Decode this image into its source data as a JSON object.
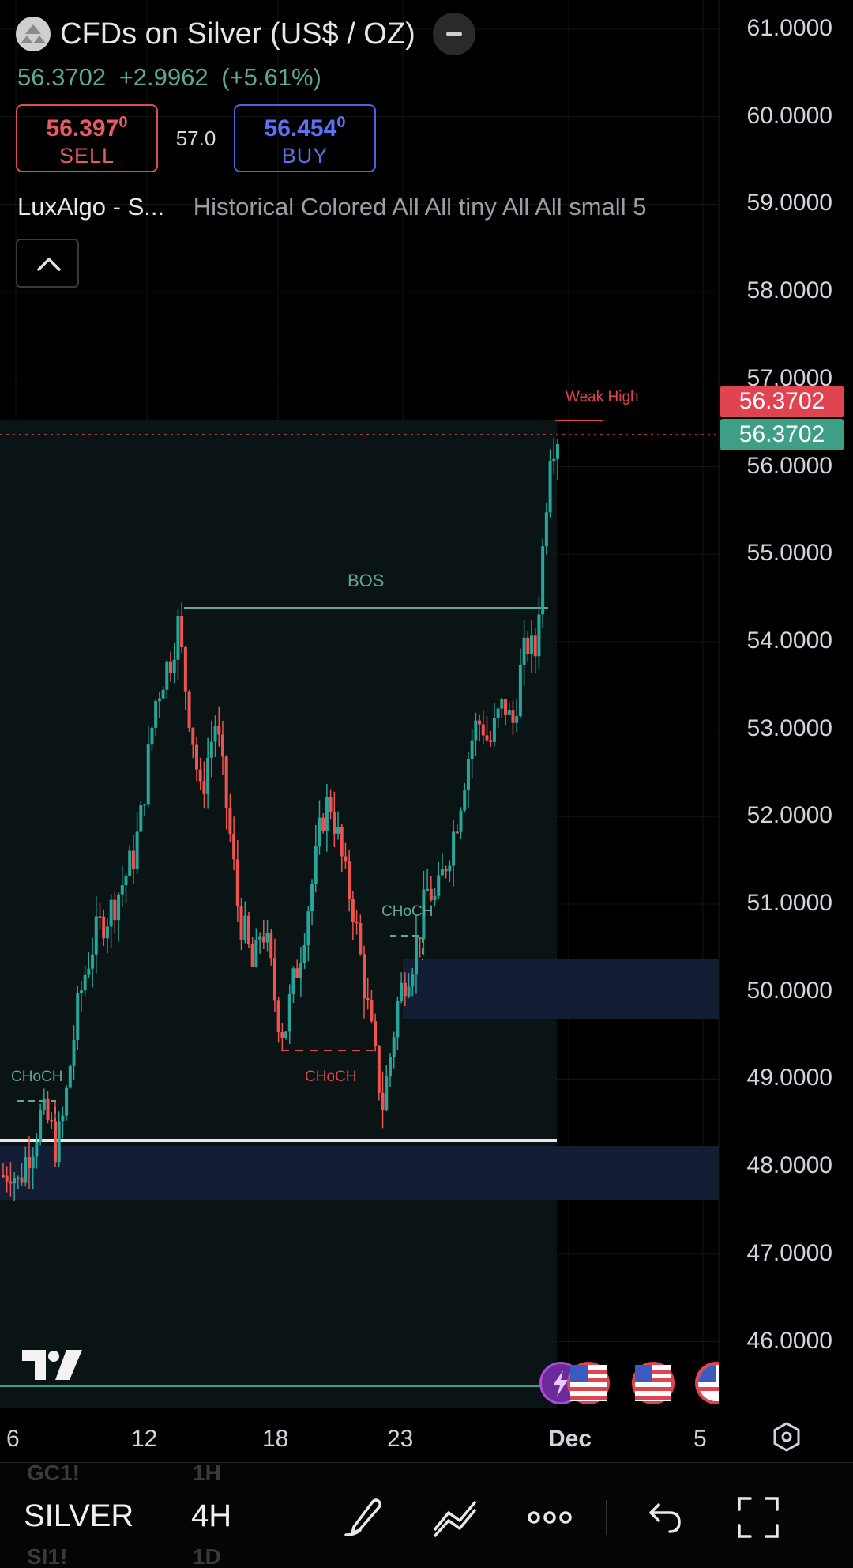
{
  "header": {
    "title": "CFDs on Silver (US$ / OZ)",
    "last_price": "56.3702",
    "change": "+2.9962",
    "change_pct": "(+5.61%)"
  },
  "trade": {
    "sell_price": "56.397",
    "sell_price_sup": "0",
    "sell_label": "SELL",
    "spread": "57.0",
    "buy_price": "56.454",
    "buy_price_sup": "0",
    "buy_label": "BUY"
  },
  "indicator": {
    "name": "LuxAlgo - S...",
    "params": "Historical Colored All All tiny All All small 5"
  },
  "price_axis": [
    "61.0000",
    "60.0000",
    "59.0000",
    "58.0000",
    "57.0000",
    "56.0000",
    "55.0000",
    "54.0000",
    "53.0000",
    "52.0000",
    "51.0000",
    "50.0000",
    "49.0000",
    "48.0000",
    "47.0000",
    "46.0000"
  ],
  "price_tags": {
    "ask": "56.3702",
    "last": "56.3702"
  },
  "time_axis": [
    "6",
    "12",
    "18",
    "23",
    "Dec",
    "5"
  ],
  "annotations": {
    "weak_high": "Weak High",
    "bos": "BOS",
    "choch_left": "CHoCH",
    "choch_mid": "CHoCH",
    "choch_low": "CHoCH"
  },
  "colors": {
    "up": "#26a69a",
    "down": "#ef5350",
    "zone": "#131d33",
    "sell": "#e04b56",
    "buy": "#4b63e6"
  },
  "bottom": {
    "symbol": "SILVER",
    "interval": "4H",
    "ghost_symbol_1": "GC1!",
    "ghost_interval_1": "1H",
    "ghost_symbol_2": "SI1!",
    "ghost_interval_2": "1D"
  },
  "chart_data": {
    "type": "candlestick",
    "y_range": [
      45.3,
      61.2
    ],
    "close_path": [
      47.9,
      48.0,
      47.8,
      48.1,
      48.3,
      48.6,
      48.5,
      48.2,
      48.6,
      49.3,
      49.9,
      50.3,
      50.6,
      50.8,
      50.9,
      51.1,
      51.3,
      51.5,
      51.9,
      52.6,
      53.3,
      53.6,
      53.8,
      54.2,
      53.5,
      52.9,
      52.2,
      52.7,
      53.1,
      52.4,
      51.7,
      50.9,
      50.6,
      50.2,
      50.8,
      50.4,
      49.8,
      49.5,
      50.0,
      50.4,
      50.9,
      51.4,
      52.0,
      52.2,
      51.8,
      51.3,
      51.0,
      50.4,
      49.8,
      49.2,
      48.7,
      49.3,
      49.9,
      50.2,
      50.4,
      50.8,
      51.2,
      51.0,
      51.4,
      51.7,
      52.1,
      52.6,
      53.0,
      53.1,
      52.8,
      53.1,
      53.3,
      53.0,
      53.6,
      54.0,
      53.8,
      55.0,
      56.25,
      56.37
    ],
    "bos_level": 54.4,
    "weak_high": 56.6,
    "last_price": 56.3702,
    "demand_zones": [
      [
        49.7,
        50.4
      ],
      [
        47.6,
        48.25
      ]
    ]
  }
}
